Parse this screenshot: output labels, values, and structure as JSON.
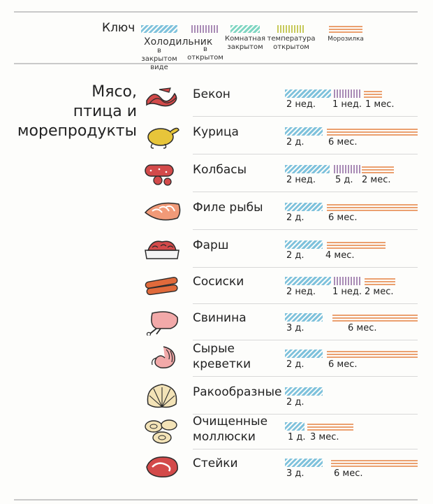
{
  "key": {
    "title": "Ключ",
    "items": [
      {
        "label_line1": "Холодильник",
        "label_line2": "в закрытом",
        "label_line3": "виде",
        "pattern": "blue"
      },
      {
        "label_line1": "",
        "label_line2": "в",
        "label_line3": "открытом",
        "pattern": "purple"
      },
      {
        "label_line1": "Комнатная",
        "label_line2": "закрытом",
        "label_line3": "",
        "pattern": "green"
      },
      {
        "label_line1": "температура",
        "label_line2": "открытом",
        "label_line3": "",
        "pattern": "yellow"
      },
      {
        "label_line1": "Морозилка",
        "label_line2": "",
        "label_line3": "",
        "pattern": "orange"
      }
    ]
  },
  "category": {
    "line1": "Мясо,",
    "line2": "птица и",
    "line3": "морепродукты"
  },
  "items": [
    {
      "name": "Бекон",
      "name2": "",
      "icon": "bacon-icon",
      "color": "#d34a4a",
      "bars": [
        {
          "type": "blue",
          "label": "2 нед."
        },
        {
          "type": "purple",
          "label": "1 нед."
        },
        {
          "type": "orange",
          "label": "1 мес."
        }
      ]
    },
    {
      "name": "Курица",
      "name2": "",
      "icon": "chicken-icon",
      "color": "#e7c53a",
      "bars": [
        {
          "type": "blue",
          "label": "2 д."
        },
        {
          "type": "orange",
          "label": "6 мес."
        }
      ]
    },
    {
      "name": "Колбасы",
      "name2": "",
      "icon": "sausage-icon",
      "color": "#d34a4a",
      "bars": [
        {
          "type": "blue",
          "label": "2 нед."
        },
        {
          "type": "purple",
          "label": "5 д."
        },
        {
          "type": "orange",
          "label": "2 мес."
        }
      ]
    },
    {
      "name": "Филе рыбы",
      "name2": "",
      "icon": "fish-fillet-icon",
      "color": "#f19a78",
      "bars": [
        {
          "type": "blue",
          "label": "2 д."
        },
        {
          "type": "orange",
          "label": "6 мес."
        }
      ]
    },
    {
      "name": "Фарш",
      "name2": "",
      "icon": "minced-meat-icon",
      "color": "#d34a4a",
      "bars": [
        {
          "type": "blue",
          "label": "2 д."
        },
        {
          "type": "orange",
          "label": "4 мес."
        }
      ]
    },
    {
      "name": "Сосиски",
      "name2": "",
      "icon": "hot-dog-icon",
      "color": "#e06a3b",
      "bars": [
        {
          "type": "blue",
          "label": "2 нед."
        },
        {
          "type": "purple",
          "label": "1 нед."
        },
        {
          "type": "orange",
          "label": "2 мес."
        }
      ]
    },
    {
      "name": "Свинина",
      "name2": "",
      "icon": "pork-icon",
      "color": "#f2a9a9",
      "bars": [
        {
          "type": "blue",
          "label": "3 д."
        },
        {
          "type": "orange",
          "label": "6 мес."
        }
      ]
    },
    {
      "name": "Сырые",
      "name2": "креветки",
      "icon": "shrimp-icon",
      "color": "#f2a9a9",
      "bars": [
        {
          "type": "blue",
          "label": "2 д."
        },
        {
          "type": "orange",
          "label": "6 мес."
        }
      ]
    },
    {
      "name": "Ракообразные",
      "name2": "",
      "icon": "shell-icon",
      "color": "#f3e3b7",
      "bars": [
        {
          "type": "blue",
          "label": "2 д."
        }
      ]
    },
    {
      "name": "Очищенные",
      "name2": "моллюски",
      "icon": "clams-icon",
      "color": "#f3e3b7",
      "bars": [
        {
          "type": "blue",
          "label": "1 д."
        },
        {
          "type": "orange",
          "label": "3 мес."
        }
      ]
    },
    {
      "name": "Стейки",
      "name2": "",
      "icon": "steak-icon",
      "color": "#d34a4a",
      "bars": [
        {
          "type": "blue",
          "label": "3 д."
        },
        {
          "type": "orange",
          "label": "6 мес."
        }
      ]
    }
  ]
}
